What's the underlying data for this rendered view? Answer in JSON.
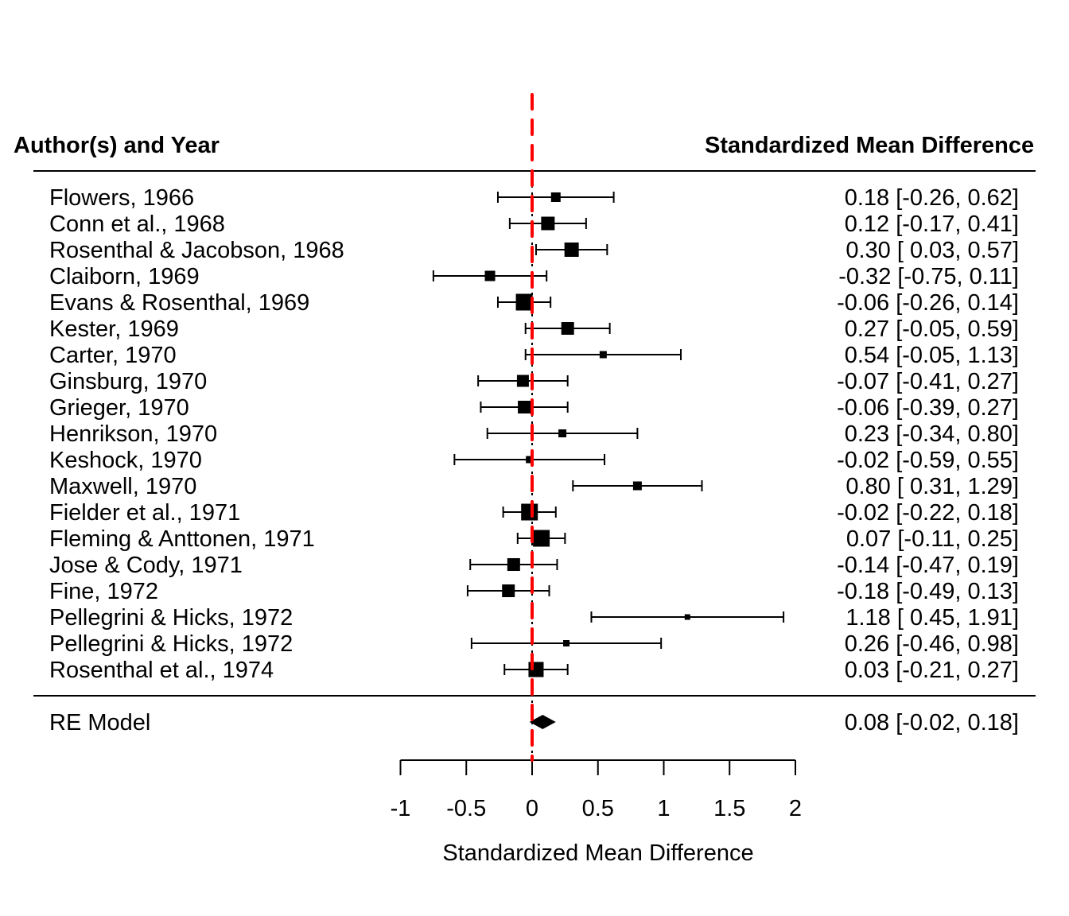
{
  "chart_data": {
    "type": "forest",
    "title": "",
    "header_left": "Author(s) and Year",
    "header_right": "Standardized Mean Difference",
    "xlabel": "Standardized Mean Difference",
    "xlim": [
      -1,
      2
    ],
    "xticks": [
      -1,
      -0.5,
      0,
      0.5,
      1,
      1.5,
      2
    ],
    "xtick_labels": [
      "-1",
      "-0.5",
      "0",
      "0.5",
      "1",
      "1.5",
      "2"
    ],
    "reference_line": {
      "x": 0,
      "style": "dashed",
      "color": "#ff0000"
    },
    "studies": [
      {
        "label": "Flowers, 1966",
        "estimate": 0.18,
        "ci_low": -0.26,
        "ci_high": 0.62,
        "text": "0.18 [-0.26, 0.62]"
      },
      {
        "label": "Conn et al., 1968",
        "estimate": 0.12,
        "ci_low": -0.17,
        "ci_high": 0.41,
        "text": "0.12 [-0.17, 0.41]"
      },
      {
        "label": "Rosenthal & Jacobson, 1968",
        "estimate": 0.3,
        "ci_low": 0.03,
        "ci_high": 0.57,
        "text": "0.30 [ 0.03, 0.57]"
      },
      {
        "label": "Claiborn, 1969",
        "estimate": -0.32,
        "ci_low": -0.75,
        "ci_high": 0.11,
        "text": "-0.32 [-0.75, 0.11]"
      },
      {
        "label": "Evans & Rosenthal, 1969",
        "estimate": -0.06,
        "ci_low": -0.26,
        "ci_high": 0.14,
        "text": "-0.06 [-0.26, 0.14]"
      },
      {
        "label": "Kester, 1969",
        "estimate": 0.27,
        "ci_low": -0.05,
        "ci_high": 0.59,
        "text": "0.27 [-0.05, 0.59]"
      },
      {
        "label": "Carter, 1970",
        "estimate": 0.54,
        "ci_low": -0.05,
        "ci_high": 1.13,
        "text": "0.54 [-0.05, 1.13]"
      },
      {
        "label": "Ginsburg, 1970",
        "estimate": -0.07,
        "ci_low": -0.41,
        "ci_high": 0.27,
        "text": "-0.07 [-0.41, 0.27]"
      },
      {
        "label": "Grieger, 1970",
        "estimate": -0.06,
        "ci_low": -0.39,
        "ci_high": 0.27,
        "text": "-0.06 [-0.39, 0.27]"
      },
      {
        "label": "Henrikson, 1970",
        "estimate": 0.23,
        "ci_low": -0.34,
        "ci_high": 0.8,
        "text": "0.23 [-0.34, 0.80]"
      },
      {
        "label": "Keshock, 1970",
        "estimate": -0.02,
        "ci_low": -0.59,
        "ci_high": 0.55,
        "text": "-0.02 [-0.59, 0.55]"
      },
      {
        "label": "Maxwell, 1970",
        "estimate": 0.8,
        "ci_low": 0.31,
        "ci_high": 1.29,
        "text": "0.80 [ 0.31, 1.29]"
      },
      {
        "label": "Fielder et al., 1971",
        "estimate": -0.02,
        "ci_low": -0.22,
        "ci_high": 0.18,
        "text": "-0.02 [-0.22, 0.18]"
      },
      {
        "label": "Fleming & Anttonen, 1971",
        "estimate": 0.07,
        "ci_low": -0.11,
        "ci_high": 0.25,
        "text": "0.07 [-0.11, 0.25]"
      },
      {
        "label": "Jose & Cody, 1971",
        "estimate": -0.14,
        "ci_low": -0.47,
        "ci_high": 0.19,
        "text": "-0.14 [-0.47, 0.19]"
      },
      {
        "label": "Fine, 1972",
        "estimate": -0.18,
        "ci_low": -0.49,
        "ci_high": 0.13,
        "text": "-0.18 [-0.49, 0.13]"
      },
      {
        "label": "Pellegrini & Hicks, 1972",
        "estimate": 1.18,
        "ci_low": 0.45,
        "ci_high": 1.91,
        "text": "1.18 [ 0.45, 1.91]"
      },
      {
        "label": "Pellegrini & Hicks, 1972",
        "estimate": 0.26,
        "ci_low": -0.46,
        "ci_high": 0.98,
        "text": "0.26 [-0.46, 0.98]"
      },
      {
        "label": "Rosenthal et al., 1974",
        "estimate": 0.03,
        "ci_low": -0.21,
        "ci_high": 0.27,
        "text": "0.03 [-0.21, 0.27]"
      }
    ],
    "summary": {
      "label": "RE Model",
      "estimate": 0.08,
      "ci_low": -0.02,
      "ci_high": 0.18,
      "text": "0.08 [-0.02, 0.18]"
    },
    "colors": {
      "marks": "#000000",
      "reference": "#ff0000"
    }
  }
}
